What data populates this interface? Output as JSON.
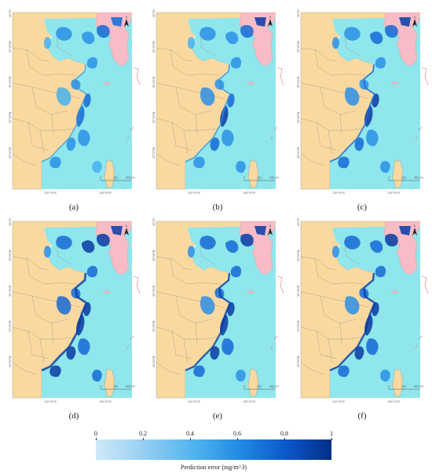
{
  "panels": [
    {
      "label": "(a)",
      "intensity": 0.25
    },
    {
      "label": "(b)",
      "intensity": 0.35
    },
    {
      "label": "(c)",
      "intensity": 0.45
    },
    {
      "label": "(d)",
      "intensity": 0.75
    },
    {
      "label": "(e)",
      "intensity": 0.6
    },
    {
      "label": "(f)",
      "intensity": 0.65
    }
  ],
  "map": {
    "north_label": "N",
    "scale_labels": [
      "0",
      "200",
      "400 km"
    ],
    "lon_labels": [
      "120°0'0\"E",
      "130°0'0\"E"
    ],
    "lat_labels": [
      "40°0'0\"N",
      "35°0'0\"N",
      "30°0'0\"N",
      "25°0'0\"N",
      "20°0'0\"N"
    ],
    "colors": {
      "land": "#fad9a0",
      "sea": "#8fe6ec",
      "korea": "#f7bcc5",
      "border": "#8b8b8b"
    }
  },
  "colorbar": {
    "ticks": [
      "0",
      "0.2",
      "0.4",
      "0.6",
      "0.8",
      "1"
    ],
    "title": "Prediction error (mg/m^3)",
    "range": [
      0,
      1
    ],
    "colors": [
      "#cfe9f8",
      "#4fb3ee",
      "#1f88e3",
      "#0a55c8",
      "#042f86"
    ]
  }
}
